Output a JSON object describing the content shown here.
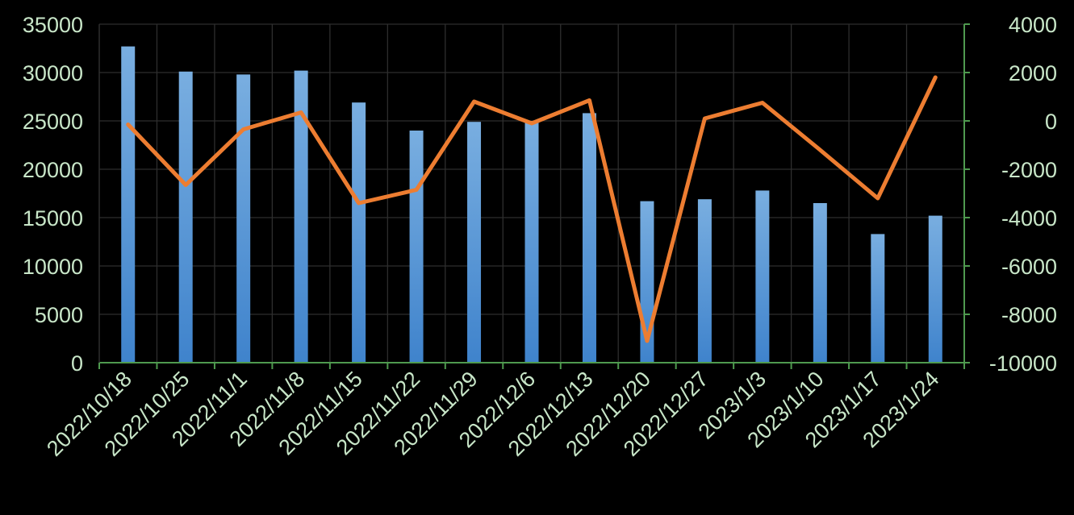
{
  "chart_data": {
    "type": "bar",
    "title": "",
    "categories": [
      "2022/10/18",
      "2022/10/25",
      "2022/11/1",
      "2022/11/8",
      "2022/11/15",
      "2022/11/22",
      "2022/11/29",
      "2022/12/6",
      "2022/12/13",
      "2022/12/20",
      "2022/12/27",
      "2023/1/3",
      "2023/1/10",
      "2023/1/17",
      "2023/1/24"
    ],
    "series": [
      {
        "type": "bar",
        "axis": "left",
        "color": "#5b9bd5",
        "values": [
          32700,
          30100,
          29800,
          30200,
          26900,
          24000,
          24900,
          25000,
          25800,
          16700,
          16900,
          17800,
          16500,
          13300,
          15200
        ]
      },
      {
        "type": "line",
        "axis": "right",
        "color": "#ed7d31",
        "values": [
          -150,
          -2650,
          -350,
          350,
          -3400,
          -2850,
          800,
          -100,
          850,
          -9100,
          100,
          750,
          -1200,
          -3200,
          1800
        ]
      }
    ],
    "y_left": {
      "min": 0,
      "max": 35000,
      "step": 5000,
      "ticks": [
        "35000",
        "30000",
        "25000",
        "20000",
        "15000",
        "10000",
        "5000",
        "0"
      ]
    },
    "y_right": {
      "min": -10000,
      "max": 4000,
      "step": 2000,
      "ticks": [
        "4000",
        "2000",
        "0",
        "-2000",
        "-4000",
        "-6000",
        "-8000",
        "-10000"
      ]
    },
    "grid": true,
    "legend": "none",
    "colors": {
      "background": "#000000",
      "grid": "#2e2e2e",
      "axis": "#4f9a4f",
      "tick_text": "#c8e6c8"
    }
  }
}
